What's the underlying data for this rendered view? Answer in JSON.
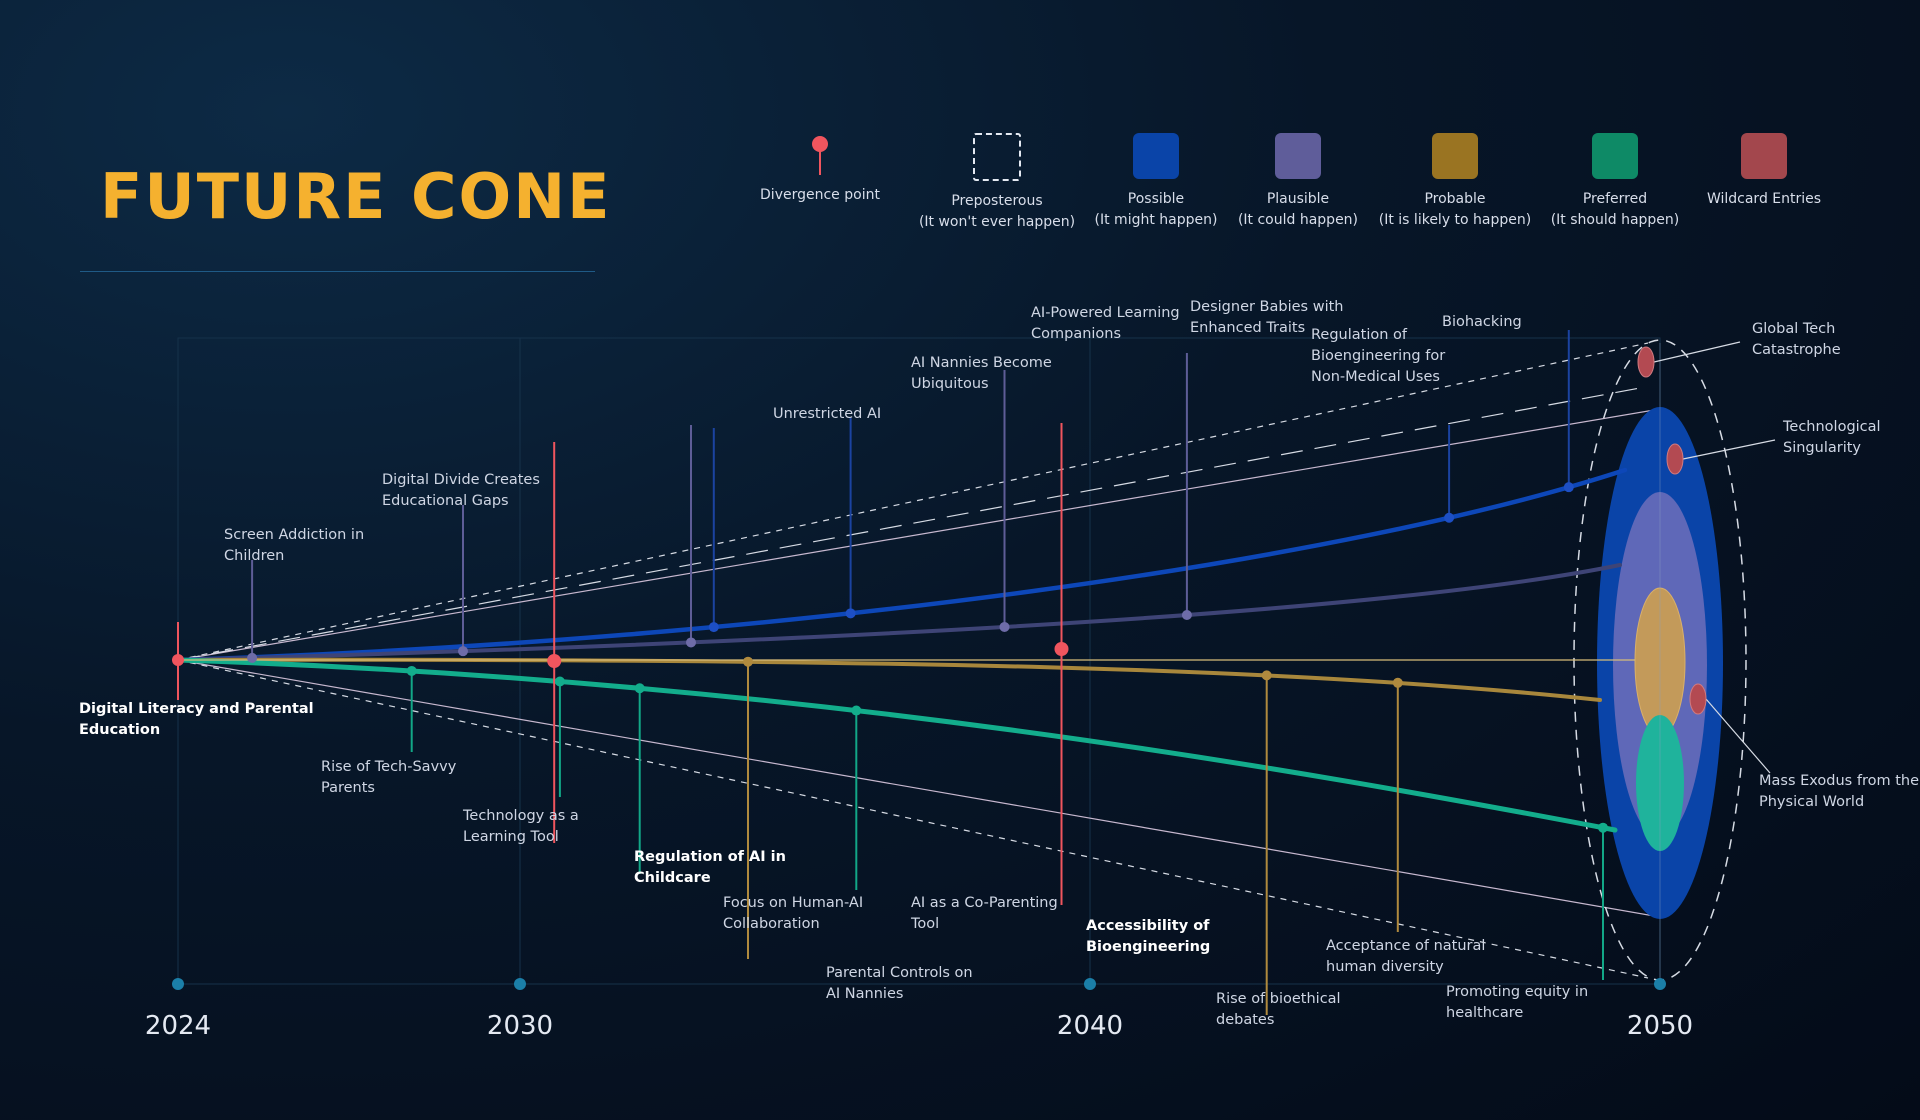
{
  "title": "FUTURE CONE",
  "colors": {
    "divergence": "#f0555e",
    "possible": "#0a44a8",
    "plausible": "#5f5d9a",
    "probable": "#b08a3e",
    "preferred": "#0fb08f",
    "wildcard": "#b34a52",
    "preposterous": "#d6dbe4",
    "title": "#f5b12f"
  },
  "legend": [
    {
      "key": "divergence",
      "label": "Divergence point",
      "sublabel": "",
      "icon": "divergence-pin-icon"
    },
    {
      "key": "preposterous",
      "label": "Preposterous",
      "sublabel": "(It won't ever happen)",
      "icon": "dashed-square-icon"
    },
    {
      "key": "possible",
      "label": "Possible",
      "sublabel": "(It might happen)",
      "color": "#0a44a8"
    },
    {
      "key": "plausible",
      "label": "Plausible",
      "sublabel": "(It could happen)",
      "color": "#5f5d9a"
    },
    {
      "key": "probable",
      "label": "Probable",
      "sublabel": "(It is likely to happen)",
      "color": "#9a7422"
    },
    {
      "key": "preferred",
      "label": "Preferred",
      "sublabel": "(It should happen)",
      "color": "#0e8a66"
    },
    {
      "key": "wildcard",
      "label": "Wildcard Entries",
      "sublabel": "",
      "color": "#a3474d"
    }
  ],
  "timeline": {
    "years": [
      "2024",
      "2030",
      "2040",
      "2050"
    ]
  },
  "events": {
    "origin": "Digital Literacy and Parental Education",
    "possible": [
      {
        "year": 2033.4,
        "label": "Unrestricted AI"
      },
      {
        "year": 2035.8,
        "label": "AI Nannies Become Ubiquitous"
      },
      {
        "year": 2046.3,
        "label": "Regulation of Bioengineering for Non-Medical Uses"
      },
      {
        "year": 2048.4,
        "label": "Biohacking"
      }
    ],
    "plausible": [
      {
        "year": 2025.3,
        "label": "Screen Addiction in Children"
      },
      {
        "year": 2029.0,
        "label": "Digital Divide Creates Educational Gaps"
      },
      {
        "year": 2033.0,
        "label": "Unrestricted AI"
      },
      {
        "year": 2038.5,
        "label": "AI-Powered Learning Companions"
      },
      {
        "year": 2041.7,
        "label": "Designer Babies with Enhanced Traits"
      }
    ],
    "probable": [
      {
        "year": 2034.0,
        "label": "Parental Controls on AI Nannies"
      },
      {
        "year": 2043.1,
        "label": "Rise of bioethical debates"
      },
      {
        "year": 2045.4,
        "label": "Acceptance of natural human diversity"
      }
    ],
    "preferred": [
      {
        "year": 2028.1,
        "label": "Rise of Tech-Savvy Parents"
      },
      {
        "year": 2030.7,
        "label": "Technology as a Learning Tool"
      },
      {
        "year": 2032.1,
        "label": "Focus on Human-AI Collaboration"
      },
      {
        "year": 2035.9,
        "label": "AI as a Co-Parenting Tool"
      },
      {
        "year": 2049.0,
        "label": "Promoting equity in healthcare"
      }
    ],
    "divergence": [
      {
        "year": 2030.6,
        "label": "Regulation of AI in Childcare"
      },
      {
        "year": 2039.5,
        "label": "Accessibility of Bioengineering"
      }
    ],
    "wildcard": [
      {
        "label": "Global Tech Catastrophe"
      },
      {
        "label": "Technological Singularity"
      },
      {
        "label": "Mass Exodus from the Physical World"
      }
    ]
  }
}
